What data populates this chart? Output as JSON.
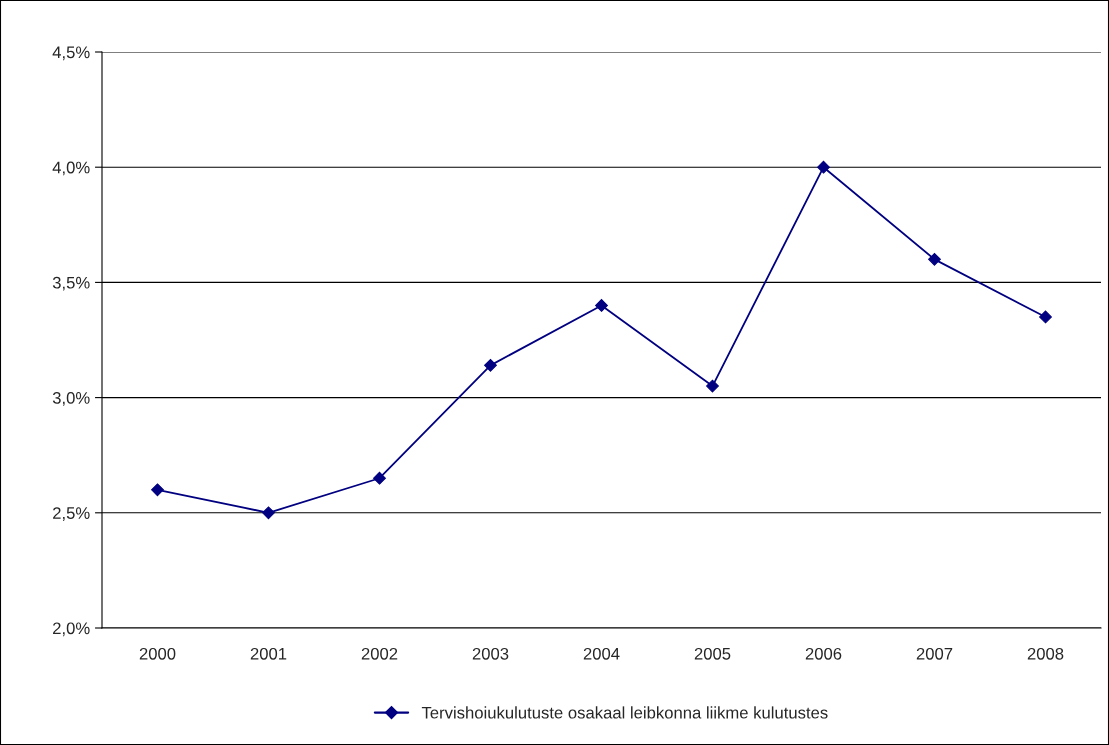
{
  "chart_data": {
    "type": "line",
    "categories": [
      "2000",
      "2001",
      "2002",
      "2003",
      "2004",
      "2005",
      "2006",
      "2007",
      "2008"
    ],
    "series": [
      {
        "name": "Tervishoiukulutuste osakaal leibkonna liikme kulutustes",
        "color": "#000080",
        "values": [
          2.6,
          2.5,
          2.65,
          3.14,
          3.4,
          3.05,
          4.0,
          3.6,
          3.35
        ]
      }
    ],
    "ylim": [
      2.0,
      4.5
    ],
    "yticks": [
      {
        "value": 2.0,
        "label": "2,0%"
      },
      {
        "value": 2.5,
        "label": "2,5%"
      },
      {
        "value": 3.0,
        "label": "3,0%"
      },
      {
        "value": 3.5,
        "label": "3,5%"
      },
      {
        "value": 4.0,
        "label": "4,0%"
      },
      {
        "value": 4.5,
        "label": "4,5%"
      }
    ],
    "grid": "y",
    "legend": "bottom",
    "marker": "diamond",
    "line_style": "solid"
  }
}
